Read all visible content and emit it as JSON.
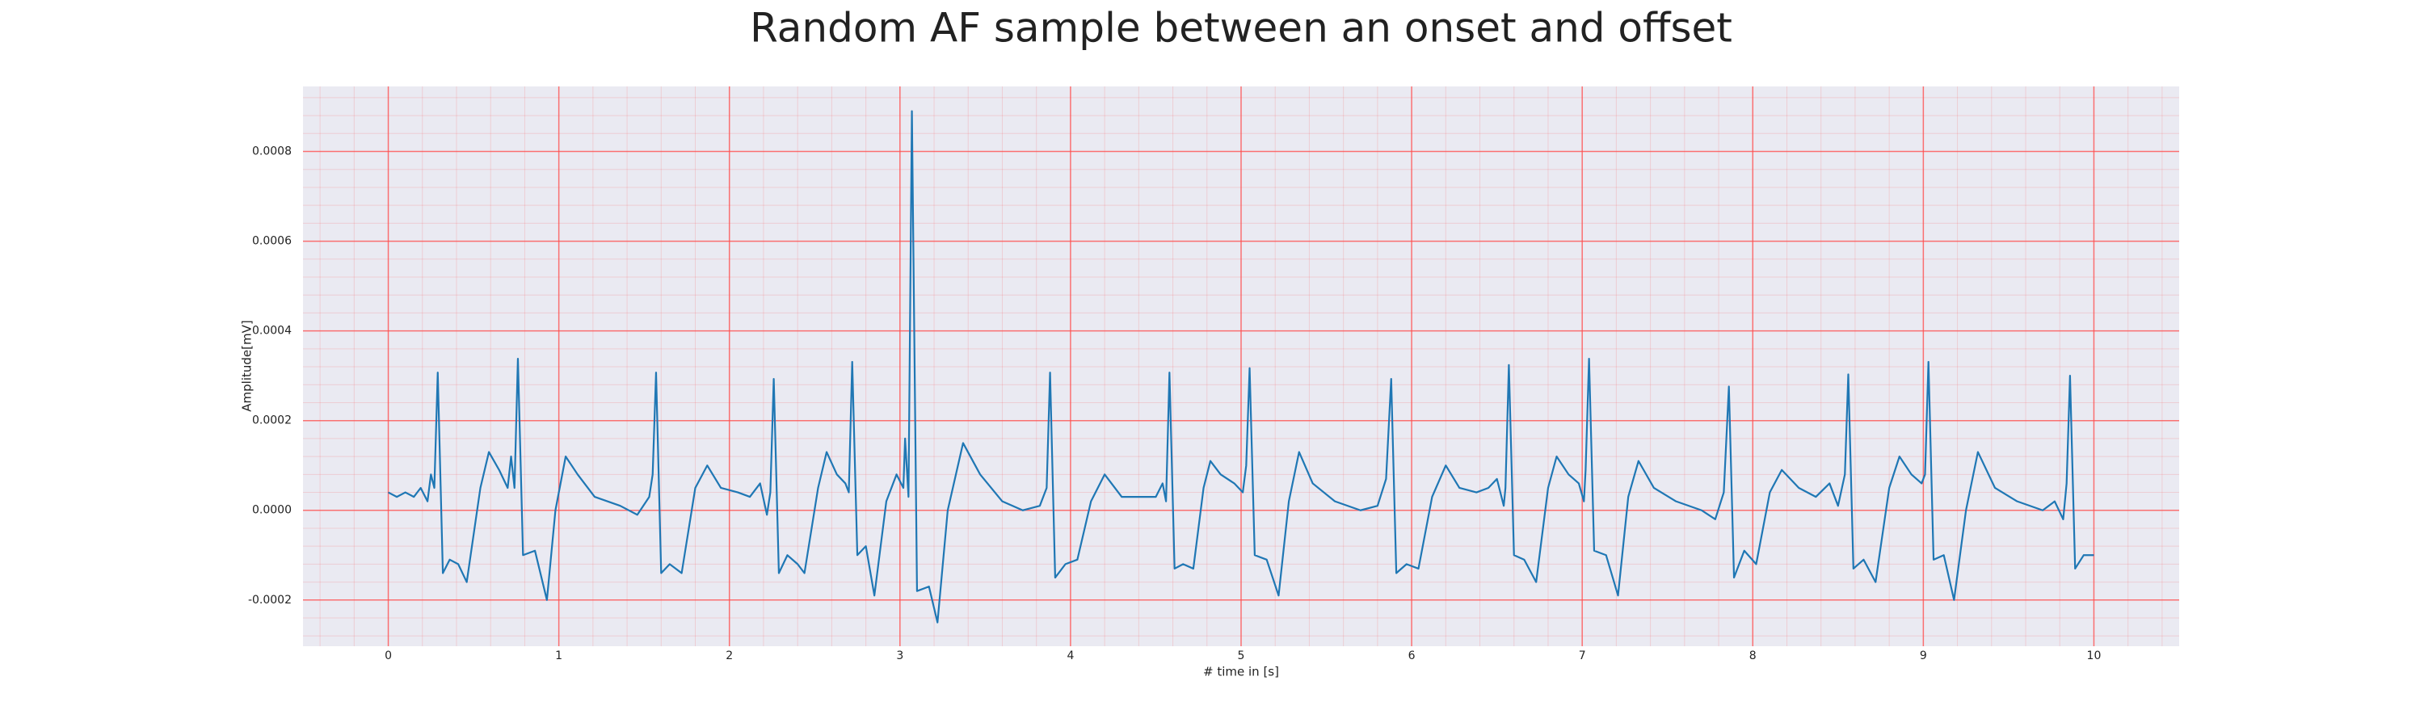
{
  "chart_data": {
    "type": "line",
    "title": "Random AF sample between an onset and offset",
    "xlabel": "# time in [s]",
    "ylabel": "Amplitude[mV]",
    "xlim": [
      -0.5,
      10.5
    ],
    "ylim": [
      -0.000303,
      0.000945
    ],
    "xticks": [
      0,
      1,
      2,
      3,
      4,
      5,
      6,
      7,
      8,
      9,
      10
    ],
    "yticks": [
      -0.0002,
      {
        "value": 0,
        "label": "0.0000"
      },
      0.0002,
      0.0004,
      0.0006,
      0.0008
    ],
    "grid": true,
    "minor_grid": true,
    "grid_color": "#ff4d4d",
    "background": "#eaeaf2",
    "x": [
      0,
      0.05,
      0.1,
      0.15,
      0.19,
      0.23,
      0.25,
      0.27,
      0.29,
      0.32,
      0.36,
      0.41,
      0.46,
      0.54,
      0.59,
      0.65,
      0.7,
      0.72,
      0.74,
      0.76,
      0.79,
      0.86,
      0.93,
      0.98,
      1.04,
      1.11,
      1.21,
      1.36,
      1.46,
      1.53,
      1.55,
      1.57,
      1.6,
      1.65,
      1.72,
      1.8,
      1.87,
      1.95,
      2.05,
      2.12,
      2.18,
      2.22,
      2.24,
      2.26,
      2.29,
      2.34,
      2.4,
      2.44,
      2.52,
      2.57,
      2.63,
      2.68,
      2.7,
      2.72,
      2.75,
      2.8,
      2.85,
      2.92,
      2.98,
      3.02,
      3.03,
      3.05,
      3.07,
      3.1,
      3.17,
      3.22,
      3.28,
      3.37,
      3.47,
      3.6,
      3.72,
      3.82,
      3.86,
      3.88,
      3.91,
      3.97,
      4.04,
      4.12,
      4.2,
      4.3,
      4.42,
      4.5,
      4.54,
      4.56,
      4.58,
      4.61,
      4.66,
      4.72,
      4.78,
      4.82,
      4.88,
      4.96,
      5.01,
      5.03,
      5.05,
      5.08,
      5.15,
      5.22,
      5.28,
      5.34,
      5.42,
      5.55,
      5.7,
      5.8,
      5.85,
      5.88,
      5.91,
      5.97,
      6.04,
      6.12,
      6.2,
      6.28,
      6.38,
      6.45,
      6.5,
      6.54,
      6.55,
      6.57,
      6.6,
      6.66,
      6.73,
      6.8,
      6.85,
      6.92,
      6.98,
      7.01,
      7.02,
      7.04,
      7.07,
      7.14,
      7.21,
      7.27,
      7.33,
      7.42,
      7.55,
      7.7,
      7.78,
      7.83,
      7.86,
      7.89,
      7.95,
      8.02,
      8.1,
      8.17,
      8.27,
      8.37,
      8.45,
      8.5,
      8.54,
      8.56,
      8.59,
      8.65,
      8.72,
      8.8,
      8.86,
      8.93,
      8.99,
      9.01,
      9.03,
      9.06,
      9.12,
      9.18,
      9.25,
      9.32,
      9.42,
      9.55,
      9.7,
      9.77,
      9.82,
      9.84,
      9.86,
      9.89,
      9.94,
      10.0
    ],
    "series": [
      {
        "color": "#1f77b4",
        "values": [
          4e-05,
          3e-05,
          4e-05,
          3e-05,
          5e-05,
          2e-05,
          8e-05,
          5e-05,
          0.000307,
          -0.00014,
          -0.00011,
          -0.00012,
          -0.00016,
          5e-05,
          0.00013,
          9e-05,
          5e-05,
          0.00012,
          5e-05,
          0.000338,
          -0.0001,
          -9e-05,
          -0.0002,
          0.0,
          0.00012,
          8e-05,
          3e-05,
          1e-05,
          -1e-05,
          3e-05,
          8e-05,
          0.000307,
          -0.00014,
          -0.00012,
          -0.00014,
          5e-05,
          0.0001,
          5e-05,
          4e-05,
          3e-05,
          6e-05,
          -1e-05,
          4e-05,
          0.000293,
          -0.00014,
          -0.0001,
          -0.00012,
          -0.00014,
          5e-05,
          0.00013,
          8e-05,
          6e-05,
          4e-05,
          0.000331,
          -0.0001,
          -8e-05,
          -0.00019,
          2e-05,
          8e-05,
          5e-05,
          0.00016,
          3e-05,
          0.00089,
          -0.00018,
          -0.00017,
          -0.00025,
          0.0,
          0.00015,
          8e-05,
          2e-05,
          0.0,
          1e-05,
          5e-05,
          0.000307,
          -0.00015,
          -0.00012,
          -0.00011,
          2e-05,
          8e-05,
          3e-05,
          3e-05,
          3e-05,
          6e-05,
          2e-05,
          0.000307,
          -0.00013,
          -0.00012,
          -0.00013,
          5e-05,
          0.00011,
          8e-05,
          6e-05,
          4e-05,
          0.0001,
          0.000317,
          -0.0001,
          -0.00011,
          -0.00019,
          2e-05,
          0.00013,
          6e-05,
          2e-05,
          0.0,
          1e-05,
          7e-05,
          0.000293,
          -0.00014,
          -0.00012,
          -0.00013,
          3e-05,
          0.0001,
          5e-05,
          4e-05,
          5e-05,
          7e-05,
          1e-05,
          5e-05,
          0.000324,
          -0.0001,
          -0.00011,
          -0.00016,
          5e-05,
          0.00012,
          8e-05,
          6e-05,
          2e-05,
          9e-05,
          0.000338,
          -9e-05,
          -0.0001,
          -0.00019,
          3e-05,
          0.00011,
          5e-05,
          2e-05,
          0.0,
          -2e-05,
          4e-05,
          0.000276,
          -0.00015,
          -9e-05,
          -0.00012,
          4e-05,
          9e-05,
          5e-05,
          3e-05,
          6e-05,
          1e-05,
          8e-05,
          0.000303,
          -0.00013,
          -0.00011,
          -0.00016,
          5e-05,
          0.00012,
          8e-05,
          6e-05,
          8e-05,
          0.000331,
          -0.00011,
          -0.0001,
          -0.0002,
          0.0,
          0.00013,
          5e-05,
          2e-05,
          0.0,
          2e-05,
          -2e-05,
          6e-05,
          0.0003,
          -0.00013,
          -0.0001,
          -0.0001
        ]
      }
    ]
  }
}
